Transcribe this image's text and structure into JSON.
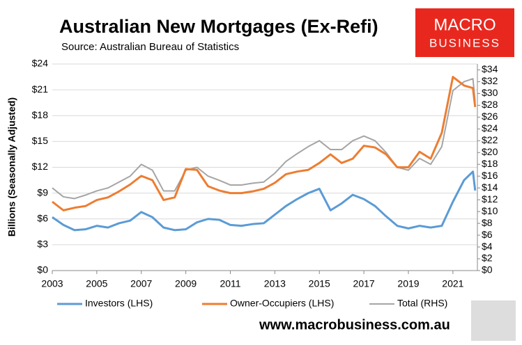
{
  "chart_data": {
    "type": "line",
    "title": "Australian New Mortgages (Ex-Refi)",
    "subtitle": "Source: Australian Bureau of Statistics",
    "ylabel": "Billions (Seasonally Adjusted)",
    "logo": [
      "MACRO",
      "BUSINESS"
    ],
    "footer": "www.macrobusiness.com.au",
    "x": [
      2003,
      2003.5,
      2004,
      2004.5,
      2005,
      2005.5,
      2006,
      2006.5,
      2007,
      2007.5,
      2008,
      2008.5,
      2009,
      2009.5,
      2010,
      2010.5,
      2011,
      2011.5,
      2012,
      2012.5,
      2013,
      2013.5,
      2014,
      2014.5,
      2015,
      2015.5,
      2016,
      2016.5,
      2017,
      2017.5,
      2018,
      2018.5,
      2019,
      2019.5,
      2020,
      2020.5,
      2021,
      2021.5,
      2021.9,
      2022
    ],
    "xlim": [
      2003,
      2022.1
    ],
    "xticks": [
      2003,
      2005,
      2007,
      2009,
      2011,
      2013,
      2015,
      2017,
      2019,
      2021
    ],
    "ylim": [
      0,
      24
    ],
    "yticks": [
      {
        "value": 0,
        "label": "$0"
      },
      {
        "value": 3,
        "label": "$3"
      },
      {
        "value": 6,
        "label": "$6"
      },
      {
        "value": 9,
        "label": "$9"
      },
      {
        "value": 12,
        "label": "$12"
      },
      {
        "value": 15,
        "label": "$15"
      },
      {
        "value": 18,
        "label": "$18"
      },
      {
        "value": 21,
        "label": "$21"
      },
      {
        "value": 24,
        "label": "$24"
      }
    ],
    "y2lim": [
      0,
      35
    ],
    "y2ticks": [
      {
        "value": 0,
        "label": "$0"
      },
      {
        "value": 2,
        "label": "$2"
      },
      {
        "value": 4,
        "label": "$4"
      },
      {
        "value": 6,
        "label": "$6"
      },
      {
        "value": 8,
        "label": "$8"
      },
      {
        "value": 10,
        "label": "$10"
      },
      {
        "value": 12,
        "label": "$12"
      },
      {
        "value": 14,
        "label": "$14"
      },
      {
        "value": 16,
        "label": "$16"
      },
      {
        "value": 18,
        "label": "$18"
      },
      {
        "value": 20,
        "label": "$20"
      },
      {
        "value": 22,
        "label": "$22"
      },
      {
        "value": 24,
        "label": "$24"
      },
      {
        "value": 26,
        "label": "$26"
      },
      {
        "value": 28,
        "label": "$28"
      },
      {
        "value": 30,
        "label": "$30"
      },
      {
        "value": 32,
        "label": "$32"
      },
      {
        "value": 34,
        "label": "$34"
      }
    ],
    "grid": true,
    "series": [
      {
        "name": "Investors (LHS)",
        "color": "#5b9bd5",
        "values": [
          6.2,
          5.3,
          4.7,
          4.8,
          5.2,
          5.0,
          5.5,
          5.8,
          6.8,
          6.2,
          5.0,
          4.7,
          4.8,
          5.6,
          6.0,
          5.9,
          5.3,
          5.2,
          5.4,
          5.5,
          6.5,
          7.5,
          8.3,
          9.0,
          9.5,
          7.0,
          7.8,
          8.8,
          8.3,
          7.5,
          6.3,
          5.2,
          4.9,
          5.2,
          5.0,
          5.2,
          8.0,
          10.5,
          11.5,
          9.3
        ]
      },
      {
        "name": "Owner-Occupiers (LHS)",
        "color": "#ed7d31",
        "values": [
          8.0,
          7.0,
          7.3,
          7.5,
          8.2,
          8.5,
          9.2,
          10.0,
          11.0,
          10.5,
          8.2,
          8.5,
          11.8,
          11.7,
          9.8,
          9.3,
          9.0,
          9.0,
          9.2,
          9.5,
          10.2,
          11.2,
          11.5,
          11.7,
          12.5,
          13.5,
          12.5,
          13.0,
          14.5,
          14.3,
          13.5,
          12.0,
          12.0,
          13.8,
          13.0,
          16.0,
          22.5,
          21.5,
          21.2,
          19.0
        ]
      },
      {
        "name": "Total (RHS)",
        "color": "#a5a5a5",
        "axis": "y2",
        "values": [
          14,
          12.5,
          12.2,
          12.8,
          13.5,
          14,
          15,
          16,
          18,
          17,
          13.5,
          13.5,
          17,
          17.5,
          16,
          15.3,
          14.5,
          14.5,
          14.8,
          15,
          16.5,
          18.5,
          19.8,
          21,
          22,
          20.5,
          20.5,
          22,
          22.8,
          22,
          20,
          17.5,
          17,
          19,
          18,
          21,
          30.5,
          32,
          32.5,
          28.5
        ]
      }
    ]
  }
}
